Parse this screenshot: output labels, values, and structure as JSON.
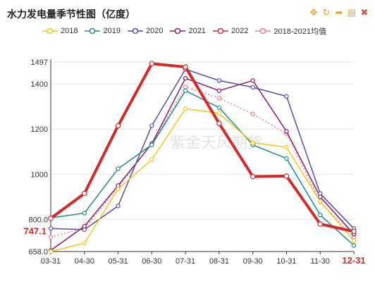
{
  "window": {
    "title": "水力发电量季节性图（亿度）"
  },
  "toolbar": {
    "tools": [
      {
        "name": "move-icon",
        "glyph": "✥",
        "color": "#f0a21e"
      },
      {
        "name": "refresh-icon",
        "glyph": "↻",
        "color": "#f0a21e"
      },
      {
        "name": "share-icon",
        "glyph": "➦",
        "color": "#f0a21e"
      },
      {
        "name": "save-image-icon",
        "glyph": "▤",
        "color": "#f0a21e"
      },
      {
        "name": "close-icon",
        "glyph": "✖",
        "color": "#d9534f"
      }
    ]
  },
  "watermark": "紫金天风期货",
  "chart_data": {
    "type": "line",
    "title": "水力发电量季节性图（亿度）",
    "categories": [
      "03-31",
      "04-30",
      "05-31",
      "06-30",
      "07-31",
      "08-31",
      "09-30",
      "10-31",
      "11-30",
      "12-31"
    ],
    "y_ticks": [
      658.0,
      800.0,
      1000,
      1200,
      1400,
      1497
    ],
    "y_tick_labels": [
      "658.0",
      "800.0",
      "1000",
      "1200",
      "1400",
      "1497"
    ],
    "ylim": [
      658.0,
      1497
    ],
    "grid": true,
    "legend_position": "top",
    "highlight_labels": {
      "y_value": "747.1",
      "x_category": "12-31",
      "color": "#d42a2a"
    },
    "series": [
      {
        "name": "2018",
        "color": "#f5c518",
        "style": "solid",
        "width": 1.5,
        "values": [
          658,
          695,
          935,
          1065,
          1290,
          1270,
          1140,
          1120,
          880,
          705
        ]
      },
      {
        "name": "2019",
        "color": "#1e8c8c",
        "style": "solid",
        "width": 1.5,
        "values": [
          807,
          828,
          1025,
          1130,
          1370,
          1295,
          1130,
          1070,
          820,
          685
        ]
      },
      {
        "name": "2020",
        "color": "#5b4aa8",
        "style": "solid",
        "width": 1.5,
        "values": [
          760,
          755,
          860,
          1215,
          1465,
          1415,
          1385,
          1345,
          915,
          760
        ]
      },
      {
        "name": "2021",
        "color": "#8b1a6b",
        "style": "solid",
        "width": 1.5,
        "values": [
          663,
          770,
          950,
          1135,
          1425,
          1370,
          1415,
          1190,
          900,
          735
        ]
      },
      {
        "name": "2022",
        "color": "#d42a2a",
        "style": "solid",
        "width": 4,
        "values": [
          805,
          915,
          1215,
          1490,
          1475,
          1225,
          990,
          992,
          780,
          747.1
        ]
      },
      {
        "name": "2018-2021均值",
        "color": "#f08080",
        "style": "dotted",
        "width": 1.5,
        "values": [
          722,
          762,
          942,
          1136,
          1387,
          1337,
          1267,
          1180,
          879,
          721
        ]
      }
    ]
  }
}
